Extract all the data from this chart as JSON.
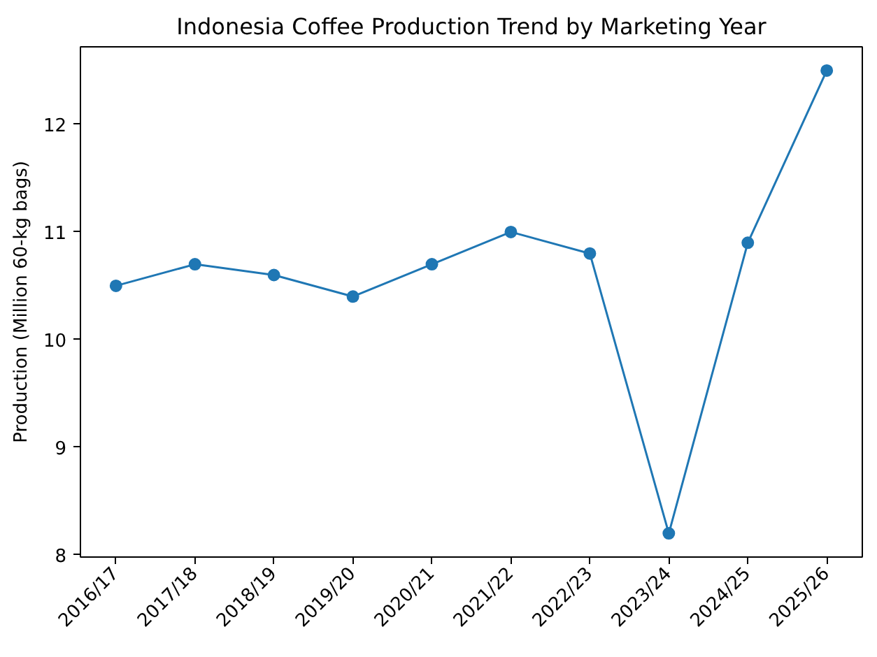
{
  "chart_data": {
    "type": "line",
    "title": "Indonesia Coffee Production Trend by Marketing Year",
    "ylabel": "Production (Million 60-kg bags)",
    "categories": [
      "2016/17",
      "2017/18",
      "2018/19",
      "2019/20",
      "2020/21",
      "2021/22",
      "2022/23",
      "2023/24",
      "2024/25",
      "2025/26"
    ],
    "series": [
      {
        "color": "#1f77b4",
        "values": [
          10.5,
          10.7,
          10.6,
          10.4,
          10.7,
          11.0,
          10.8,
          8.2,
          10.9,
          12.5
        ]
      }
    ],
    "ylim": [
      7.98,
      12.72
    ],
    "yticks": [
      8,
      9,
      10,
      11,
      12
    ],
    "marker": "circle",
    "line_style": "solid",
    "grid": false
  }
}
